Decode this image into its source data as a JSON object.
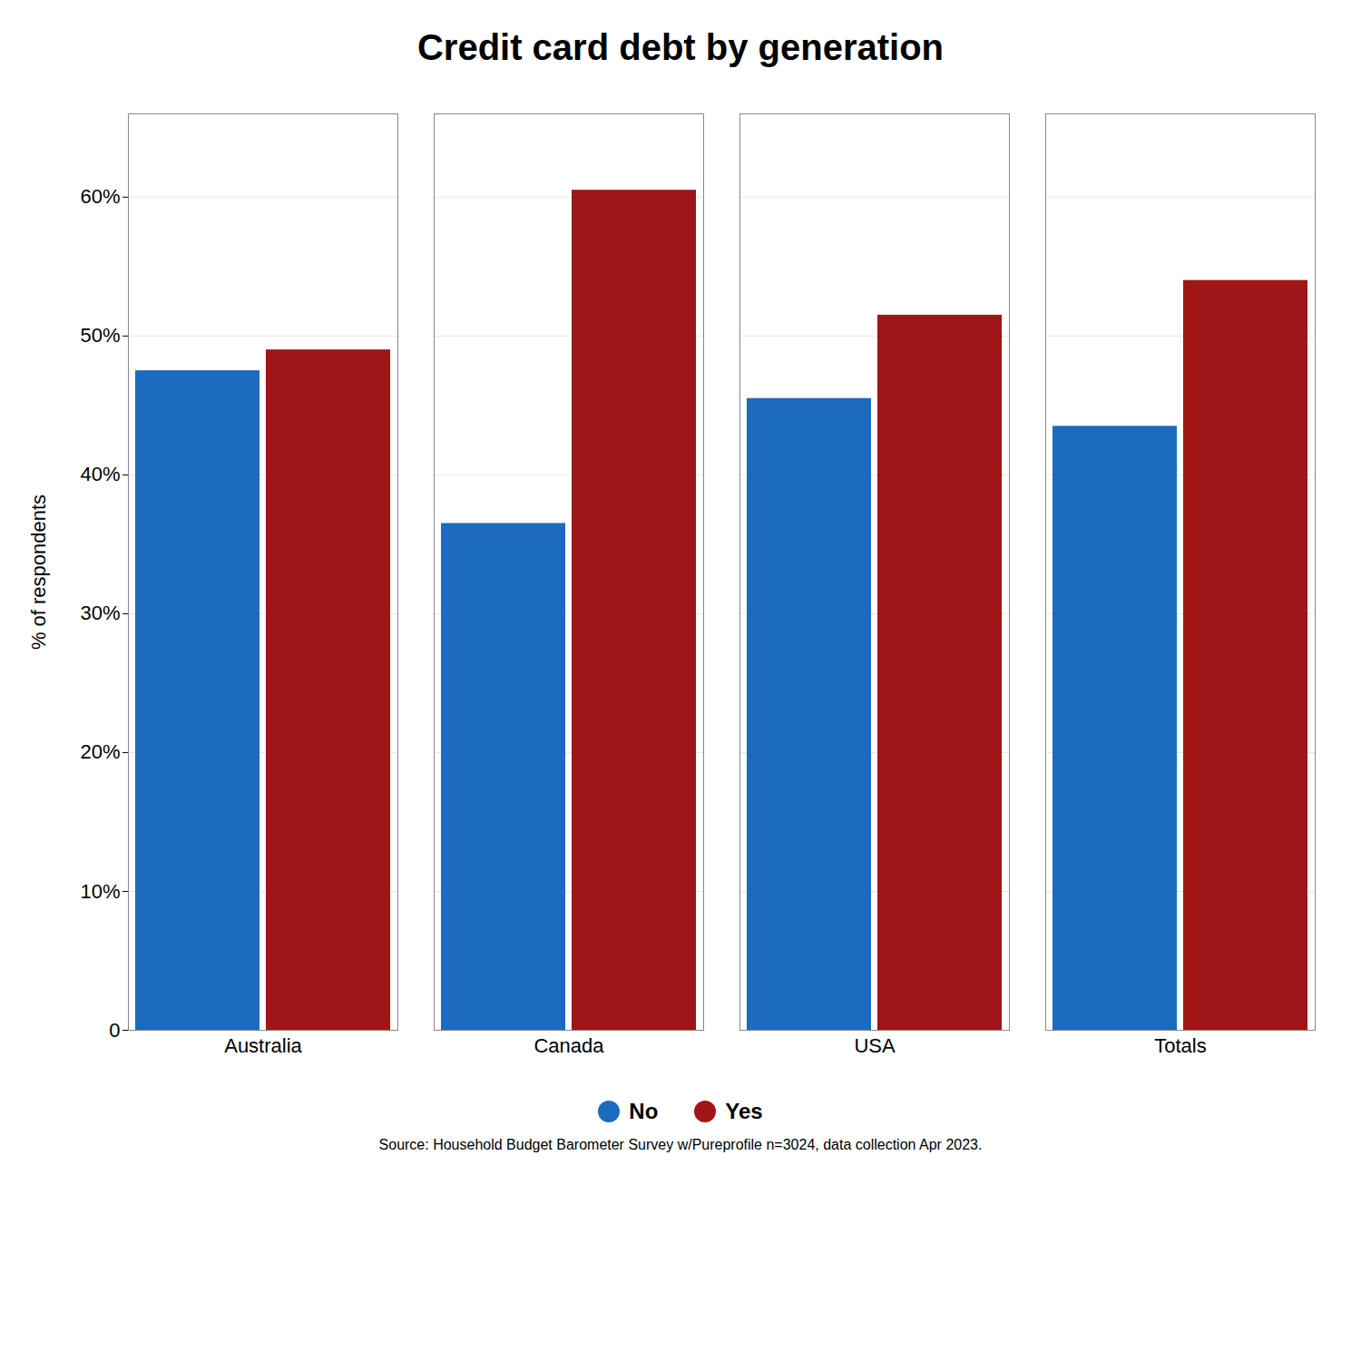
{
  "chart_data": {
    "type": "bar",
    "title": "Credit card debt by generation",
    "categories": [
      "Australia",
      "Canada",
      "USA",
      "Totals"
    ],
    "series": [
      {
        "name": "No",
        "color": "#1C6BC0",
        "values": [
          47.5,
          36.5,
          45.5,
          43.5
        ]
      },
      {
        "name": "Yes",
        "color": "#A01515",
        "values": [
          49.0,
          60.5,
          51.5,
          54.0
        ]
      }
    ],
    "ylabel": "% of respondents",
    "ylim": [
      0,
      66
    ],
    "yticks": [
      0,
      {
        "value": 10,
        "label": "10%"
      },
      {
        "value": 20,
        "label": "20%"
      },
      {
        "value": 30,
        "label": "30%"
      },
      {
        "value": 40,
        "label": "40%"
      },
      {
        "value": 50,
        "label": "50%"
      },
      {
        "value": 60,
        "label": "60%"
      }
    ],
    "grid": true,
    "legend": "bottom",
    "caption": "Source: Household Budget Barometer Survey w/Pureprofile n=3024, data collection Apr 2023."
  }
}
